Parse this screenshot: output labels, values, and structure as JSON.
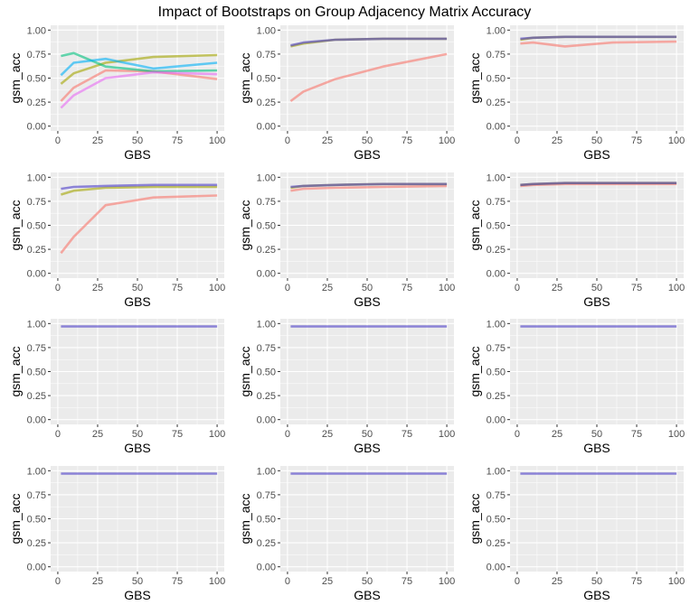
{
  "title": "Impact of Bootstraps on Group Adjacency Matrix Accuracy",
  "chart_data": {
    "type": "line",
    "title": "Impact of Bootstraps on Group Adjacency Matrix Accuracy",
    "xlabel": "GBS",
    "ylabel": "gsm_acc",
    "xlim": [
      0,
      100
    ],
    "ylim": [
      0,
      1
    ],
    "xticks": [
      "0",
      "25",
      "50",
      "75",
      "100"
    ],
    "xtick_values": [
      0,
      25,
      50,
      75,
      100
    ],
    "yticks": [
      "0.00",
      "0.25",
      "0.50",
      "0.75",
      "1.00"
    ],
    "ytick_values": [
      0,
      0.25,
      0.5,
      0.75,
      1.0
    ],
    "grid": true,
    "legend": "none",
    "x": [
      2,
      10,
      30,
      60,
      100
    ],
    "colors": {
      "red": "#F8766D",
      "olive": "#A3A500",
      "green": "#00BF7D",
      "blue": "#00B0F6",
      "magenta": "#E76BF3",
      "purple": "#4B3CC8"
    },
    "panels": [
      {
        "series": [
          {
            "color": "red",
            "values": [
              0.26,
              0.4,
              0.58,
              0.57,
              0.49
            ]
          },
          {
            "color": "olive",
            "values": [
              0.44,
              0.55,
              0.66,
              0.72,
              0.74
            ]
          },
          {
            "color": "green",
            "values": [
              0.73,
              0.76,
              0.62,
              0.57,
              0.58
            ]
          },
          {
            "color": "blue",
            "values": [
              0.53,
              0.66,
              0.7,
              0.6,
              0.66
            ]
          },
          {
            "color": "magenta",
            "values": [
              0.19,
              0.32,
              0.5,
              0.56,
              0.54
            ]
          }
        ]
      },
      {
        "series": [
          {
            "color": "red",
            "values": [
              0.26,
              0.36,
              0.49,
              0.62,
              0.75
            ]
          },
          {
            "color": "olive",
            "values": [
              0.83,
              0.86,
              0.9,
              0.91,
              0.91
            ]
          },
          {
            "color": "purple",
            "values": [
              0.84,
              0.87,
              0.9,
              0.91,
              0.91
            ]
          }
        ]
      },
      {
        "series": [
          {
            "color": "red",
            "values": [
              0.86,
              0.87,
              0.83,
              0.87,
              0.88
            ]
          },
          {
            "color": "olive",
            "values": [
              0.9,
              0.92,
              0.93,
              0.93,
              0.93
            ]
          },
          {
            "color": "purple",
            "values": [
              0.91,
              0.92,
              0.93,
              0.93,
              0.93
            ]
          }
        ]
      },
      {
        "series": [
          {
            "color": "red",
            "values": [
              0.21,
              0.38,
              0.71,
              0.79,
              0.81
            ]
          },
          {
            "color": "olive",
            "values": [
              0.82,
              0.86,
              0.89,
              0.9,
              0.9
            ]
          },
          {
            "color": "purple",
            "values": [
              0.88,
              0.9,
              0.91,
              0.92,
              0.92
            ]
          }
        ]
      },
      {
        "series": [
          {
            "color": "red",
            "values": [
              0.86,
              0.88,
              0.89,
              0.9,
              0.91
            ]
          },
          {
            "color": "olive",
            "values": [
              0.89,
              0.91,
              0.92,
              0.93,
              0.93
            ]
          },
          {
            "color": "purple",
            "values": [
              0.9,
              0.91,
              0.92,
              0.93,
              0.93
            ]
          }
        ]
      },
      {
        "series": [
          {
            "color": "red",
            "values": [
              0.91,
              0.92,
              0.93,
              0.93,
              0.93
            ]
          },
          {
            "color": "olive",
            "values": [
              0.92,
              0.93,
              0.94,
              0.94,
              0.94
            ]
          },
          {
            "color": "purple",
            "values": [
              0.92,
              0.93,
              0.94,
              0.94,
              0.94
            ]
          }
        ]
      },
      {
        "series": [
          {
            "color": "purple",
            "values": [
              0.97,
              0.97,
              0.97,
              0.97,
              0.97
            ]
          }
        ]
      },
      {
        "series": [
          {
            "color": "purple",
            "values": [
              0.97,
              0.97,
              0.97,
              0.97,
              0.97
            ]
          }
        ]
      },
      {
        "series": [
          {
            "color": "purple",
            "values": [
              0.97,
              0.97,
              0.97,
              0.97,
              0.97
            ]
          }
        ]
      },
      {
        "series": [
          {
            "color": "purple",
            "values": [
              0.97,
              0.97,
              0.97,
              0.97,
              0.97
            ]
          }
        ]
      },
      {
        "series": [
          {
            "color": "purple",
            "values": [
              0.97,
              0.97,
              0.97,
              0.97,
              0.97
            ]
          }
        ]
      },
      {
        "series": [
          {
            "color": "purple",
            "values": [
              0.97,
              0.97,
              0.97,
              0.97,
              0.97
            ]
          }
        ]
      }
    ]
  }
}
